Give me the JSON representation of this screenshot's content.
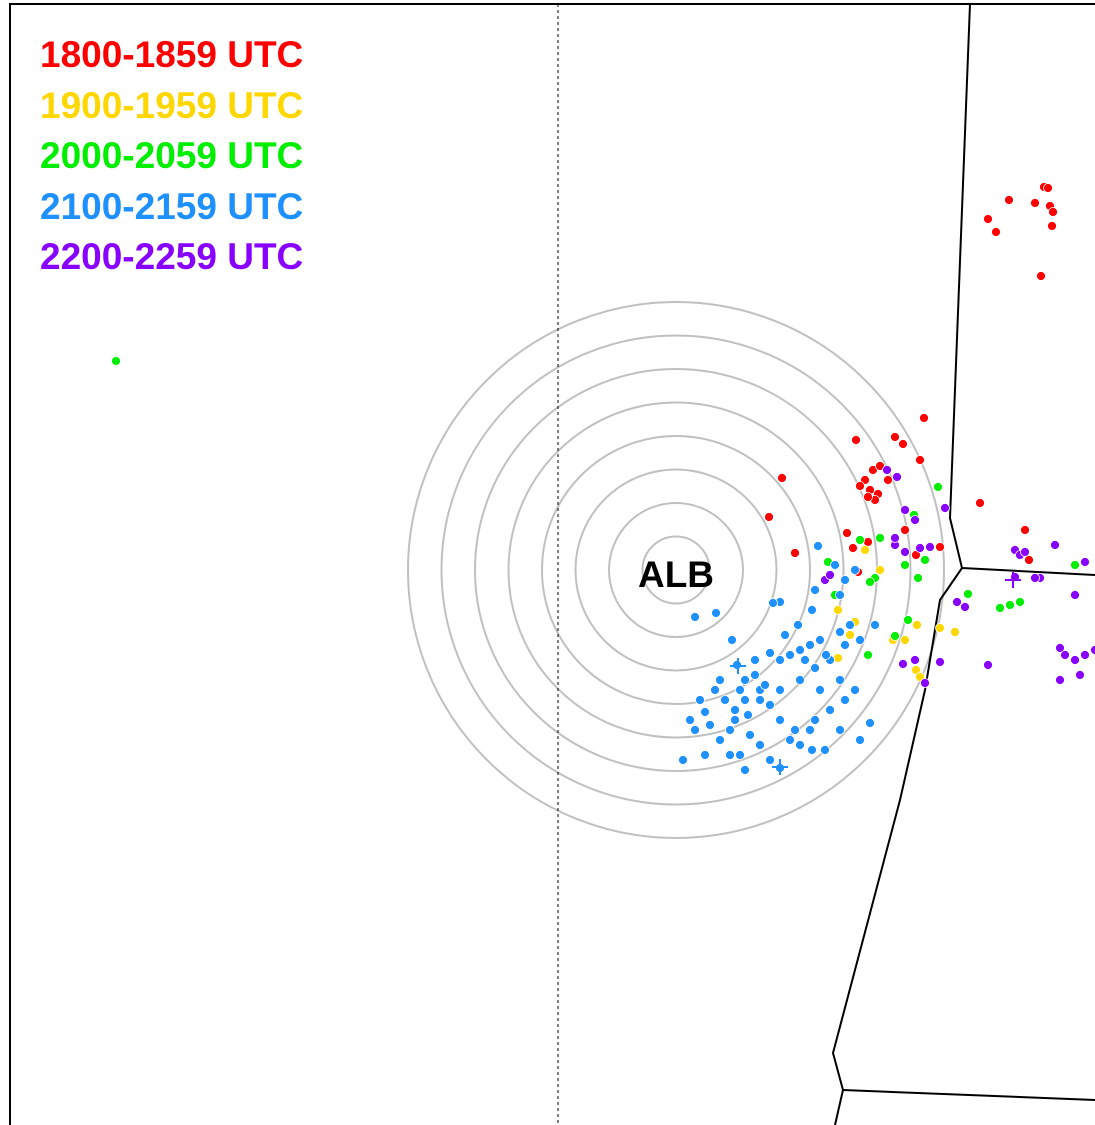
{
  "station": {
    "label": "ALB"
  },
  "legend": {
    "items": [
      {
        "label": "1800-1859 UTC",
        "color": "#ff0000"
      },
      {
        "label": "1900-1959 UTC",
        "color": "#ffd700"
      },
      {
        "label": "2000-2059 UTC",
        "color": "#00ee00"
      },
      {
        "label": "2100-2159 UTC",
        "color": "#1e90ff"
      },
      {
        "label": "2200-2259 UTC",
        "color": "#8800ff"
      }
    ]
  },
  "colors": {
    "range_rings": "#c0c0c0",
    "boundaries": "#000000",
    "background": "#ffffff"
  },
  "range_ring_count": 8
}
